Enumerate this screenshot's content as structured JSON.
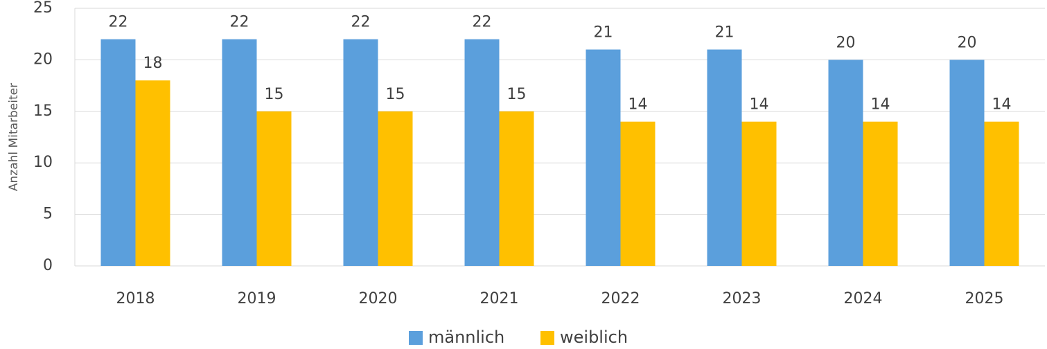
{
  "chart_data": {
    "type": "bar",
    "y_label": "Anzahl Mitarbeiter",
    "categories": [
      "2018",
      "2019",
      "2020",
      "2021",
      "2022",
      "2023",
      "2024",
      "2025"
    ],
    "series": [
      {
        "name": "männlich",
        "color": "#5b9fdc",
        "values": [
          22,
          22,
          22,
          22,
          21,
          21,
          20,
          20
        ]
      },
      {
        "name": "weiblich",
        "color": "#ffc000",
        "values": [
          18,
          15,
          15,
          15,
          14,
          14,
          14,
          14
        ]
      }
    ],
    "ylim": [
      0,
      25
    ],
    "yticks": [
      0,
      5,
      10,
      15,
      20,
      25
    ],
    "grid": true,
    "legend": "bottom"
  }
}
